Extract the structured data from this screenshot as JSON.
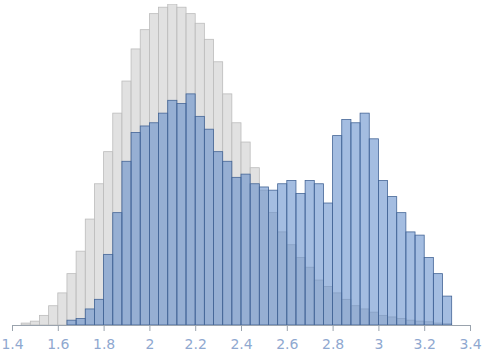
{
  "chart_data": {
    "type": "histogram",
    "bins": [
      1.44,
      1.48,
      1.52,
      1.56,
      1.6,
      1.64,
      1.68,
      1.72,
      1.76,
      1.8,
      1.84,
      1.88,
      1.92,
      1.96,
      2.0,
      2.04,
      2.08,
      2.12,
      2.16,
      2.2,
      2.24,
      2.28,
      2.32,
      2.36,
      2.4,
      2.44,
      2.48,
      2.52,
      2.56,
      2.6,
      2.64,
      2.68,
      2.72,
      2.76,
      2.8,
      2.84,
      2.88,
      2.92,
      2.96,
      3.0,
      3.04,
      3.08,
      3.12,
      3.16,
      3.2,
      3.24,
      3.28,
      3.32
    ],
    "series": [
      {
        "color": "#d9d9d9",
        "values": [
          0.6,
          1.2,
          3,
          6,
          10,
          16,
          23,
          33,
          44,
          54,
          66,
          76,
          86,
          92,
          97,
          99,
          100,
          99,
          97,
          94,
          89,
          82,
          72,
          63,
          57,
          49,
          42,
          35,
          29,
          25,
          21,
          18,
          14,
          12,
          10,
          8,
          6,
          5,
          4,
          3,
          2.5,
          2,
          1.5,
          1.2,
          1,
          0.6,
          0.4
        ]
      },
      {
        "color": "#5a86c8",
        "values": [
          0,
          0,
          0,
          0,
          0,
          1.5,
          2,
          5,
          8,
          22,
          35,
          51,
          60,
          62,
          63,
          66,
          70,
          69,
          72,
          65,
          61,
          54,
          51,
          46,
          47,
          44,
          43,
          42,
          44,
          45,
          41,
          45,
          44,
          38,
          59,
          64,
          63,
          66,
          58,
          45,
          40,
          35,
          29,
          28,
          21,
          16,
          9
        ]
      }
    ],
    "xlim": [
      1.4,
      3.4
    ],
    "xticks": [
      1.4,
      1.6,
      1.8,
      2,
      2.2,
      2.4,
      2.6,
      2.8,
      3,
      3.2,
      3.4
    ],
    "ylim": [
      0,
      100
    ],
    "tick_labels": "x"
  }
}
